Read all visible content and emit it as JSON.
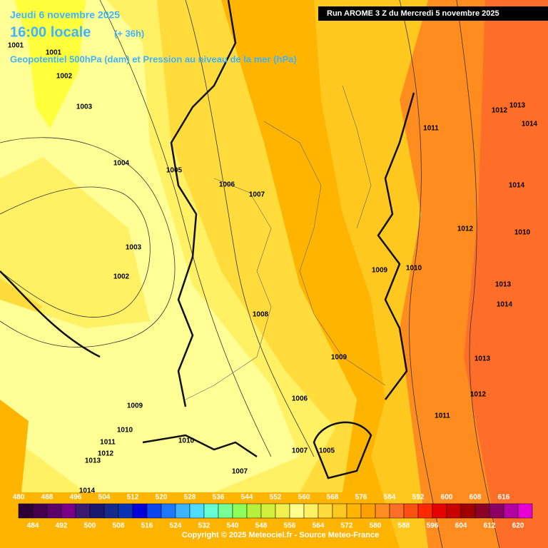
{
  "header": {
    "date": "Jeudi 6 novembre 2025",
    "time": "16:00 locale",
    "lead": "(+ 36h)",
    "field": "Geopotentiel 500hPa (dam) et Pression au niveau de la mer (hPa)"
  },
  "run_banner": "Run AROME 3 Z du Mercredi 5 novembre 2025",
  "isobar_labels": [
    "1001",
    "1001",
    "1002",
    "1003",
    "1004",
    "1005",
    "1006",
    "1007",
    "1003",
    "1002",
    "1008",
    "1009",
    "1006",
    "1009",
    "1010",
    "1011",
    "1012",
    "1013",
    "1010",
    "1007",
    "1005",
    "1007",
    "1011",
    "1012",
    "1013",
    "1014",
    "1014",
    "1012",
    "1010",
    "1009",
    "1010",
    "1013",
    "1014",
    "1013",
    "1012",
    "1011",
    "1014"
  ],
  "colorbar": {
    "top_labels": [
      480,
      488,
      496,
      504,
      512,
      520,
      528,
      536,
      544,
      552,
      560,
      568,
      576,
      584,
      592,
      600,
      608,
      616
    ],
    "bottom_labels": [
      484,
      492,
      500,
      508,
      516,
      524,
      532,
      540,
      548,
      556,
      564,
      572,
      580,
      588,
      596,
      604,
      612,
      620
    ],
    "colors": [
      "#2c0036",
      "#44004f",
      "#5c006a",
      "#780088",
      "#3a1a70",
      "#191970",
      "#142a8c",
      "#0a32b4",
      "#0000d8",
      "#0a46f0",
      "#1e78ff",
      "#3cb4ff",
      "#50dcff",
      "#64ffd2",
      "#78ff96",
      "#8cff5a",
      "#b4f03c",
      "#d2f03c",
      "#f0f050",
      "#ffff8c",
      "#fff064",
      "#ffdc3c",
      "#ffc81e",
      "#ffb400",
      "#ffa000",
      "#ff8c1e",
      "#ff6e28",
      "#ff5014",
      "#ff2800",
      "#e60000",
      "#c80000",
      "#a00000",
      "#8c0028",
      "#8c0064",
      "#b400a0",
      "#e600d2"
    ]
  },
  "copyright": "Copyright © 2025 Meteociel.fr - Source Meteo-France"
}
